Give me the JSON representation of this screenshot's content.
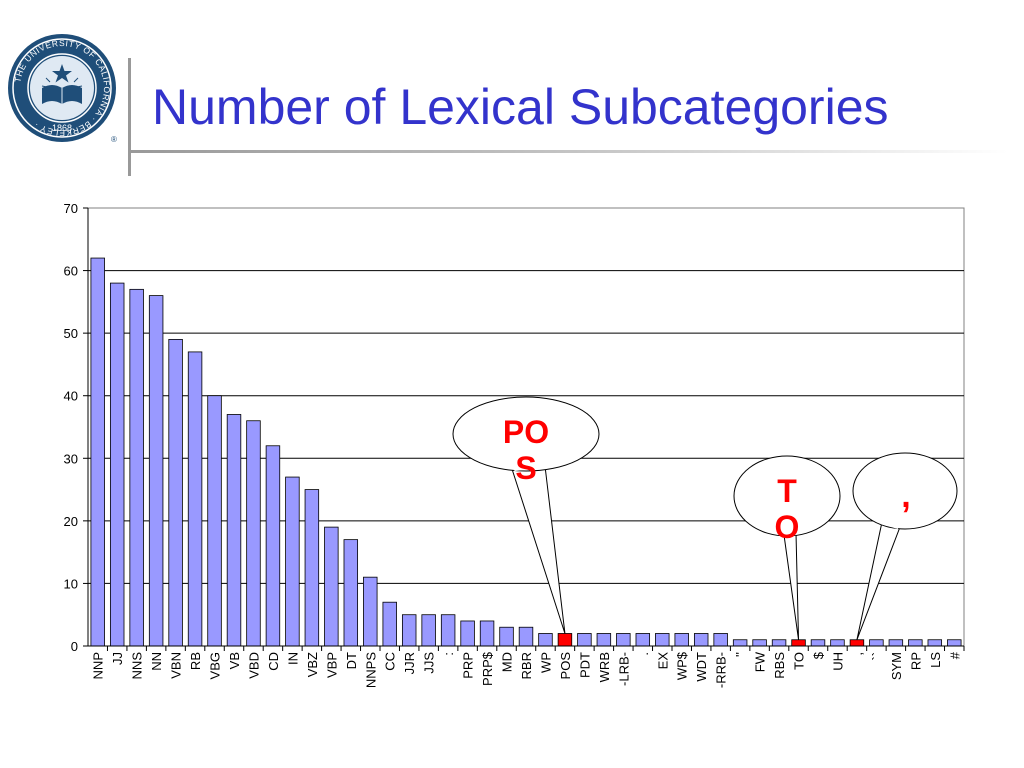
{
  "slide": {
    "title": "Number of Lexical Subcategories",
    "logo_text": {
      "ring": "THE UNIVERSITY OF CALIFORNIA · BERKELEY ·",
      "year": "1868",
      "registered": "®"
    },
    "callouts": [
      {
        "lines": [
          "PO",
          "S"
        ],
        "target": "POS"
      },
      {
        "lines": [
          "T",
          "O"
        ],
        "target": "TO"
      },
      {
        "lines": [
          ","
        ],
        "target": ","
      }
    ]
  },
  "colors": {
    "title": "#3333cc",
    "bar": "#9999ff",
    "highlight_bar": "#ff0000",
    "callout_text": "#ff0000",
    "logo": "#1f4e79"
  },
  "chart_data": {
    "type": "bar",
    "title": "",
    "xlabel": "",
    "ylabel": "",
    "ylim": [
      0,
      70
    ],
    "yticks": [
      0,
      10,
      20,
      30,
      40,
      50,
      60,
      70
    ],
    "grid": true,
    "categories": [
      "NNP",
      "JJ",
      "NNS",
      "NN",
      "VBN",
      "RB",
      "VBG",
      "VB",
      "VBD",
      "CD",
      "IN",
      "VBZ",
      "VBP",
      "DT",
      "NNPS",
      "CC",
      "JJR",
      "JJS",
      ":",
      "PRP",
      "PRP$",
      "MD",
      "RBR",
      "WP",
      "POS",
      "PDT",
      "WRB",
      "-LRB-",
      ".",
      "EX",
      "WP$",
      "WDT",
      "-RRB-",
      "''",
      "FW",
      "RBS",
      "TO",
      "$",
      "UH",
      ",",
      "``",
      "SYM",
      "RP",
      "LS",
      "#"
    ],
    "values": [
      62,
      58,
      57,
      56,
      49,
      47,
      40,
      37,
      36,
      32,
      27,
      25,
      19,
      17,
      11,
      7,
      5,
      5,
      5,
      4,
      4,
      3,
      3,
      2,
      2,
      2,
      2,
      2,
      2,
      2,
      2,
      2,
      2,
      1,
      1,
      1,
      1,
      1,
      1,
      1,
      1,
      1,
      1,
      1,
      1
    ],
    "highlighted": [
      "POS",
      "TO",
      ","
    ]
  }
}
